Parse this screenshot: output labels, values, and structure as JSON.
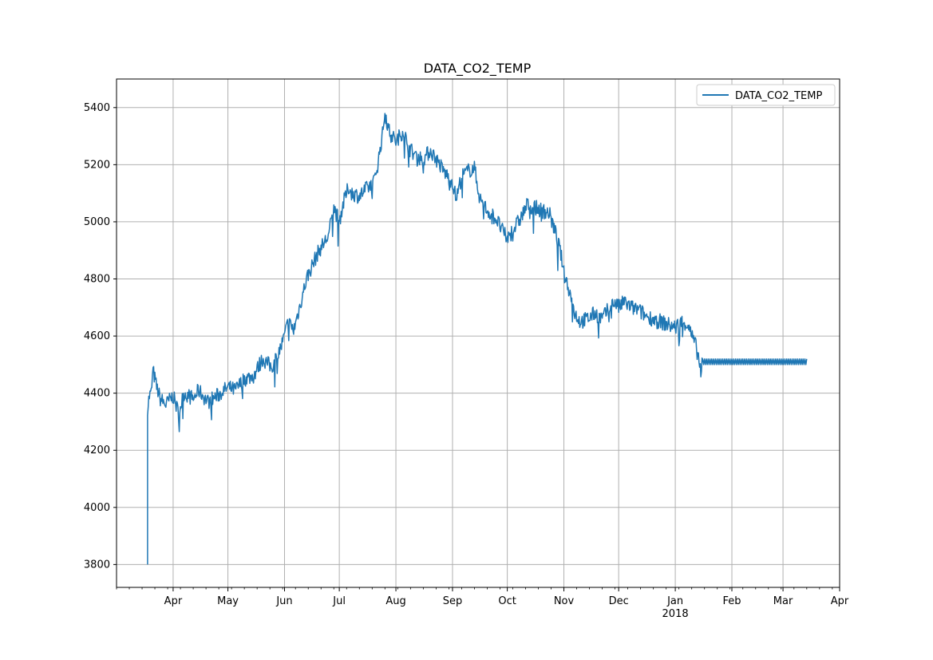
{
  "chart_data": {
    "type": "line",
    "title": "DATA_CO2_TEMP",
    "xlabel": "",
    "ylabel": "",
    "x_axis_type": "date",
    "xlim": [
      "2017-03-01",
      "2018-04-01"
    ],
    "ylim": [
      3720,
      5500
    ],
    "y_ticks": [
      3800,
      4000,
      4200,
      4400,
      4600,
      4800,
      5000,
      5200,
      5400
    ],
    "x_tick_labels": [
      {
        "date": "2017-04-01",
        "label": "Apr"
      },
      {
        "date": "2017-05-01",
        "label": "May"
      },
      {
        "date": "2017-06-01",
        "label": "Jun"
      },
      {
        "date": "2017-07-01",
        "label": "Jul"
      },
      {
        "date": "2017-08-01",
        "label": "Aug"
      },
      {
        "date": "2017-09-01",
        "label": "Sep"
      },
      {
        "date": "2017-10-01",
        "label": "Oct"
      },
      {
        "date": "2017-11-01",
        "label": "Nov"
      },
      {
        "date": "2017-12-01",
        "label": "Dec"
      },
      {
        "date": "2018-01-01",
        "label": "Jan",
        "sublabel": "2018"
      },
      {
        "date": "2018-02-01",
        "label": "Feb"
      },
      {
        "date": "2018-03-01",
        "label": "Mar"
      },
      {
        "date": "2018-04-01",
        "label": "Apr"
      }
    ],
    "grid": true,
    "legend_position": "top-right",
    "series": [
      {
        "name": "DATA_CO2_TEMP",
        "color": "#1f77b4",
        "points": [
          [
            "2017-03-18",
            3800
          ],
          [
            "2017-03-18",
            4350
          ],
          [
            "2017-03-19",
            4390
          ],
          [
            "2017-03-20",
            4400
          ],
          [
            "2017-03-21",
            4480
          ],
          [
            "2017-03-23",
            4420
          ],
          [
            "2017-03-25",
            4380
          ],
          [
            "2017-03-28",
            4360
          ],
          [
            "2017-04-01",
            4390
          ],
          [
            "2017-04-04",
            4330
          ],
          [
            "2017-04-07",
            4400
          ],
          [
            "2017-04-12",
            4380
          ],
          [
            "2017-04-15",
            4410
          ],
          [
            "2017-04-20",
            4370
          ],
          [
            "2017-04-25",
            4390
          ],
          [
            "2017-05-01",
            4420
          ],
          [
            "2017-05-05",
            4410
          ],
          [
            "2017-05-10",
            4450
          ],
          [
            "2017-05-15",
            4460
          ],
          [
            "2017-05-20",
            4520
          ],
          [
            "2017-05-25",
            4490
          ],
          [
            "2017-05-30",
            4560
          ],
          [
            "2017-06-01",
            4600
          ],
          [
            "2017-06-03",
            4650
          ],
          [
            "2017-06-06",
            4620
          ],
          [
            "2017-06-10",
            4720
          ],
          [
            "2017-06-13",
            4800
          ],
          [
            "2017-06-17",
            4860
          ],
          [
            "2017-06-20",
            4900
          ],
          [
            "2017-06-25",
            4950
          ],
          [
            "2017-06-28",
            5050
          ],
          [
            "2017-07-01",
            5000
          ],
          [
            "2017-07-03",
            5060
          ],
          [
            "2017-07-06",
            5120
          ],
          [
            "2017-07-08",
            5100
          ],
          [
            "2017-07-12",
            5090
          ],
          [
            "2017-07-15",
            5110
          ],
          [
            "2017-07-20",
            5140
          ],
          [
            "2017-07-22",
            5200
          ],
          [
            "2017-07-25",
            5320
          ],
          [
            "2017-07-26",
            5390
          ],
          [
            "2017-07-28",
            5320
          ],
          [
            "2017-08-01",
            5280
          ],
          [
            "2017-08-05",
            5320
          ],
          [
            "2017-08-08",
            5260
          ],
          [
            "2017-08-12",
            5230
          ],
          [
            "2017-08-16",
            5220
          ],
          [
            "2017-08-20",
            5250
          ],
          [
            "2017-08-24",
            5210
          ],
          [
            "2017-08-28",
            5170
          ],
          [
            "2017-09-01",
            5140
          ],
          [
            "2017-09-03",
            5080
          ],
          [
            "2017-09-06",
            5160
          ],
          [
            "2017-09-10",
            5180
          ],
          [
            "2017-09-13",
            5190
          ],
          [
            "2017-09-16",
            5080
          ],
          [
            "2017-09-20",
            5040
          ],
          [
            "2017-09-25",
            5010
          ],
          [
            "2017-09-29",
            4960
          ],
          [
            "2017-10-01",
            4940
          ],
          [
            "2017-10-04",
            4970
          ],
          [
            "2017-10-08",
            5010
          ],
          [
            "2017-10-12",
            5060
          ],
          [
            "2017-10-16",
            5050
          ],
          [
            "2017-10-20",
            5040
          ],
          [
            "2017-10-24",
            5030
          ],
          [
            "2017-10-27",
            4970
          ],
          [
            "2017-10-30",
            4900
          ],
          [
            "2017-11-01",
            4820
          ],
          [
            "2017-11-04",
            4760
          ],
          [
            "2017-11-07",
            4680
          ],
          [
            "2017-11-10",
            4650
          ],
          [
            "2017-11-14",
            4660
          ],
          [
            "2017-11-18",
            4680
          ],
          [
            "2017-11-22",
            4660
          ],
          [
            "2017-11-26",
            4700
          ],
          [
            "2017-11-29",
            4720
          ],
          [
            "2017-12-01",
            4700
          ],
          [
            "2017-12-04",
            4720
          ],
          [
            "2017-12-08",
            4700
          ],
          [
            "2017-12-12",
            4690
          ],
          [
            "2017-12-16",
            4670
          ],
          [
            "2017-12-20",
            4660
          ],
          [
            "2017-12-24",
            4650
          ],
          [
            "2017-12-28",
            4640
          ],
          [
            "2018-01-01",
            4630
          ],
          [
            "2018-01-04",
            4650
          ],
          [
            "2018-01-08",
            4640
          ],
          [
            "2018-01-10",
            4600
          ],
          [
            "2018-01-12",
            4570
          ],
          [
            "2018-01-14",
            4520
          ],
          [
            "2018-01-15",
            4480
          ],
          [
            "2018-01-16",
            4510
          ]
        ],
        "plateau": {
          "start": "2018-01-16",
          "end": "2018-03-14",
          "low": 4500,
          "high": 4520
        }
      }
    ]
  }
}
